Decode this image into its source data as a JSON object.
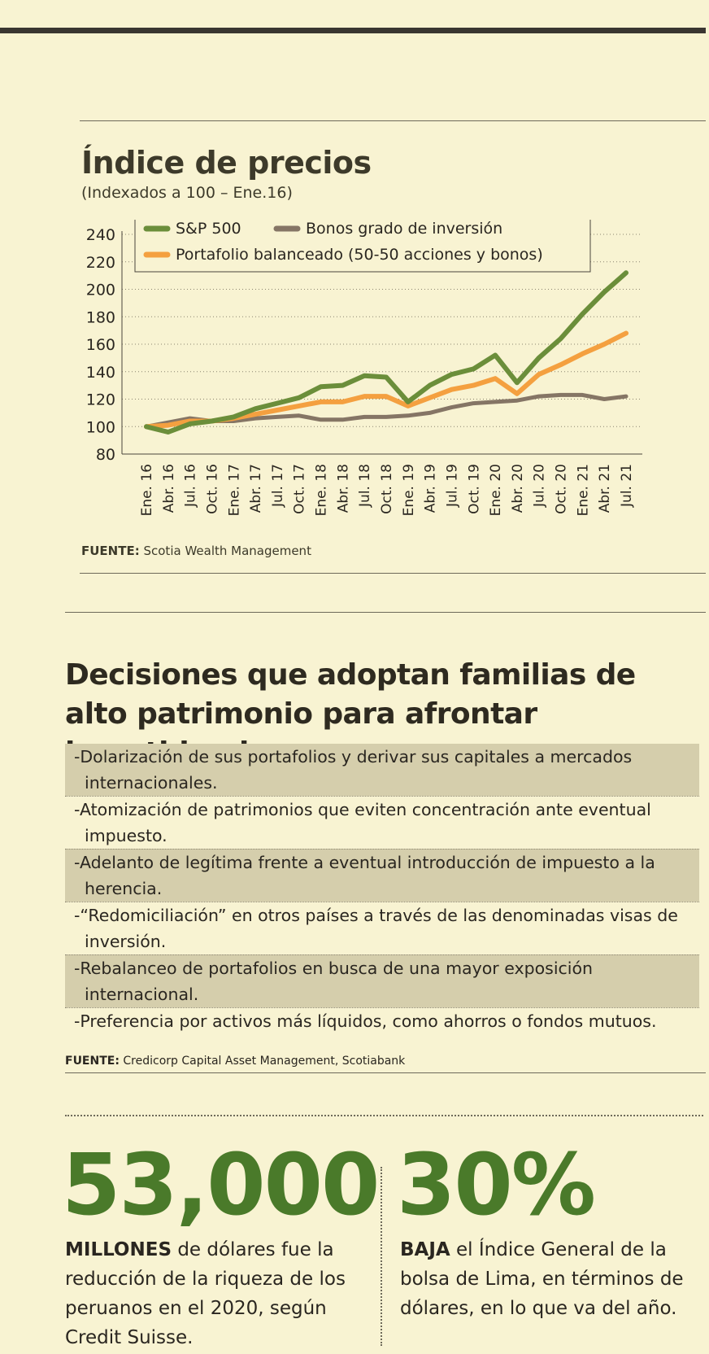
{
  "chart": {
    "title": "Índice de precios",
    "subtitle": "(Indexados a 100 – Ene.16)",
    "source_label": "FUENTE:",
    "source_text": " Scotia Wealth Management"
  },
  "chart_data": {
    "type": "line",
    "title": "Índice de precios",
    "subtitle": "(Indexados a 100 – Ene.16)",
    "ylim": [
      80,
      240
    ],
    "yticks": [
      80,
      100,
      120,
      140,
      160,
      180,
      200,
      220,
      240
    ],
    "grid": true,
    "legend_position": "top",
    "x": [
      "Ene. 16",
      "Abr. 16",
      "Jul. 16",
      "Oct. 16",
      "Ene. 17",
      "Abr. 17",
      "Jul. 17",
      "Oct. 17",
      "Ene. 18",
      "Abr. 18",
      "Jul. 18",
      "Oct. 18",
      "Ene. 19",
      "Abr. 19",
      "Jul. 19",
      "Oct. 19",
      "Ene. 20",
      "Abr. 20",
      "Jul. 20",
      "Oct. 20",
      "Ene. 21",
      "Abr. 21",
      "Jul. 21"
    ],
    "series": [
      {
        "name": "S&P 500",
        "color": "#6b8e3a",
        "values": [
          100,
          96,
          102,
          104,
          107,
          113,
          117,
          121,
          129,
          130,
          137,
          136,
          118,
          130,
          138,
          142,
          152,
          132,
          150,
          164,
          182,
          198,
          212
        ]
      },
      {
        "name": "Bonos grado de inversión",
        "color": "#857565",
        "values": [
          100,
          103,
          106,
          104,
          104,
          106,
          107,
          108,
          105,
          105,
          107,
          107,
          108,
          110,
          114,
          117,
          118,
          119,
          122,
          123,
          123,
          120,
          122
        ]
      },
      {
        "name": "Portafolio balanceado (50-50 acciones y bonos)",
        "color": "#f4a040",
        "values": [
          100,
          101,
          104,
          104,
          106,
          109,
          112,
          115,
          118,
          118,
          122,
          122,
          115,
          121,
          127,
          130,
          135,
          124,
          138,
          145,
          153,
          160,
          168
        ]
      }
    ]
  },
  "decisions": {
    "title": "Decisiones que adoptan familias de alto patrimonio para afrontar incertidumbre",
    "items": [
      "-Dolarización de sus portafolios y derivar sus capitales a mercados internacionales.",
      "-Atomización de patrimonios que eviten concentración ante eventual impuesto.",
      "-Adelanto de legítima frente a eventual introducción de impuesto a la herencia.",
      "-“Redomiciliación” en otros países a través de las denominadas visas de inversión.",
      "-Rebalanceo de portafolios en busca de una mayor exposición internacional.",
      "-Preferencia por activos más líquidos, como ahorros o fondos mutuos."
    ],
    "source_label": "FUENTE:",
    "source_text": " Credicorp Capital Asset Management, Scotiabank"
  },
  "stats": [
    {
      "number": "53,000",
      "bold": "MILLONES",
      "text": " de dólares fue la reducción de la riqueza de los peruanos en el 2020, según Credit Suisse."
    },
    {
      "number": "30%",
      "bold": "BAJA",
      "text": " el Índice General de la bolsa de Lima, en términos de dólares, en lo que va del año."
    }
  ],
  "colors": {
    "accent_green": "#4a7a2a",
    "row_shade": "#d5ceac",
    "background": "#f8f3d2"
  }
}
